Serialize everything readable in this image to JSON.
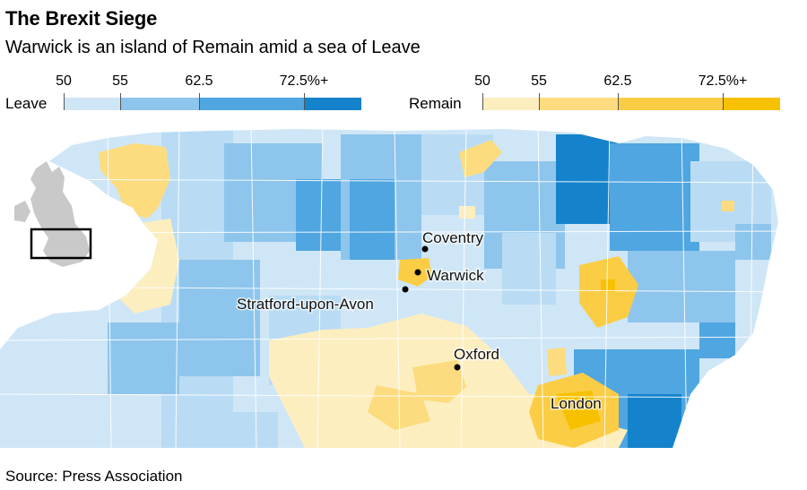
{
  "title": "The Brexit Siege",
  "subtitle": "Warwick is an island of Remain amid a sea of Leave",
  "legend": {
    "leave": {
      "label": "Leave",
      "ticks": [
        "50",
        "55",
        "62.5",
        "72.5%+"
      ],
      "colors": [
        "#cfe6f7",
        "#8ec5ec",
        "#4fa6e0",
        "#1583cc"
      ]
    },
    "remain": {
      "label": "Remain",
      "ticks": [
        "50",
        "55",
        "62.5",
        "72.5%+"
      ],
      "colors": [
        "#fdeec0",
        "#fcdc7e",
        "#fbcd45",
        "#f8c100"
      ]
    }
  },
  "places": [
    {
      "name": "Coventry"
    },
    {
      "name": "Warwick"
    },
    {
      "name": "Stratford-upon-Avon"
    },
    {
      "name": "Oxford"
    },
    {
      "name": "London"
    }
  ],
  "source": "Source: Press Association"
}
